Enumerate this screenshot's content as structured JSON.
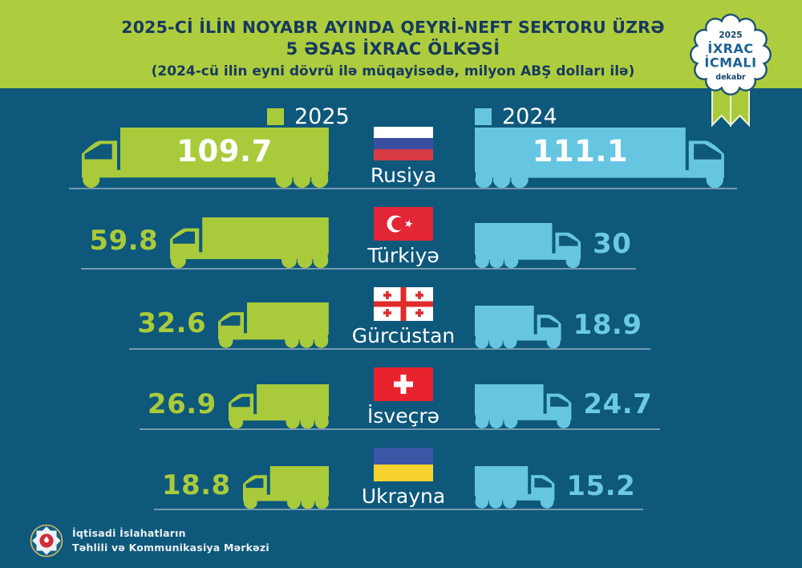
{
  "header": {
    "title_line1": "2025-Cİ İLİN NOYABR AYINDA QEYRİ-NEFT SEKTORU ÜZRƏ",
    "title_line2": "5 ƏSAS İXRAC ÖLKƏSİ",
    "subtitle": "(2024-cü ilin eyni dövrü ilə müqayisədə, milyon ABŞ dolları ilə)"
  },
  "badge": {
    "year": "2025",
    "line1": "İXRAC",
    "line2": "İCMALI",
    "month": "dekabr"
  },
  "legend": {
    "items": [
      {
        "label": "2025",
        "color": "#a9cb3b"
      },
      {
        "label": "2024",
        "color": "#66c6e2"
      }
    ]
  },
  "chart_data": {
    "type": "bar",
    "orientation": "horizontal-pictogram-trucks",
    "title": "2025-ci ilin noyabr ayında qeyri-neft sektoru üzrə 5 əsas ixrac ölkəsi",
    "subtitle": "(2024-cü ilin eyni dövrü ilə müqayisədə, milyon ABŞ dolları ilə)",
    "unit": "milyon ABŞ dolları",
    "categories": [
      "Rusiya",
      "Türkiyə",
      "Gürcüstan",
      "İsveçrə",
      "Ukrayna"
    ],
    "series": [
      {
        "name": "2025",
        "color": "#a9cb3b",
        "values": [
          109.7,
          59.8,
          32.6,
          26.9,
          18.8
        ]
      },
      {
        "name": "2024",
        "color": "#66c6e2",
        "values": [
          111.1,
          30,
          18.9,
          24.7,
          15.2
        ]
      }
    ],
    "legend_position": "top",
    "value_max": 111.1
  },
  "rows": [
    {
      "country": "Rusiya",
      "flag": "ru",
      "v2025": "109.7",
      "v2024": "111.1",
      "values_inside": true
    },
    {
      "country": "Türkiyə",
      "flag": "tr",
      "v2025": "59.8",
      "v2024": "30",
      "values_inside": false
    },
    {
      "country": "Gürcüstan",
      "flag": "ge",
      "v2025": "32.6",
      "v2024": "18.9",
      "values_inside": false
    },
    {
      "country": "İsveçrə",
      "flag": "ch",
      "v2025": "26.9",
      "v2024": "24.7",
      "values_inside": false
    },
    {
      "country": "Ukrayna",
      "flag": "ua",
      "v2025": "18.8",
      "v2024": "15.2",
      "values_inside": false
    }
  ],
  "flags": {
    "ru": {
      "type": "hstripes",
      "colors": [
        "#ffffff",
        "#3b4fa0",
        "#d63b45"
      ]
    },
    "tr": {
      "type": "crescent-star",
      "bg": "#e32636",
      "fg": "#ffffff"
    },
    "ge": {
      "type": "georgia-cross",
      "bg": "#ffffff",
      "fg": "#e02b2b"
    },
    "ch": {
      "type": "swiss-cross",
      "bg": "#e8232d",
      "fg": "#ffffff"
    },
    "ua": {
      "type": "hstripes",
      "colors": [
        "#3b55a7",
        "#f7d32f"
      ]
    }
  },
  "footer": {
    "org_line1": "İqtisadi İslahatların",
    "org_line2": "Təhlili və Kommunikasiya Mərkəzi"
  },
  "colors": {
    "background": "#0e587b",
    "header_bg": "#aecd3e",
    "title_text": "#16395e",
    "green": "#a9cb3b",
    "blue": "#66c6e2",
    "value_blue_text": "#6cc9e6",
    "white": "#ffffff",
    "ground_line": "#87a6ba",
    "badge_border": "#1c5276",
    "badge_text_navy": "#14456b",
    "badge_text_blue": "#1b6394"
  }
}
